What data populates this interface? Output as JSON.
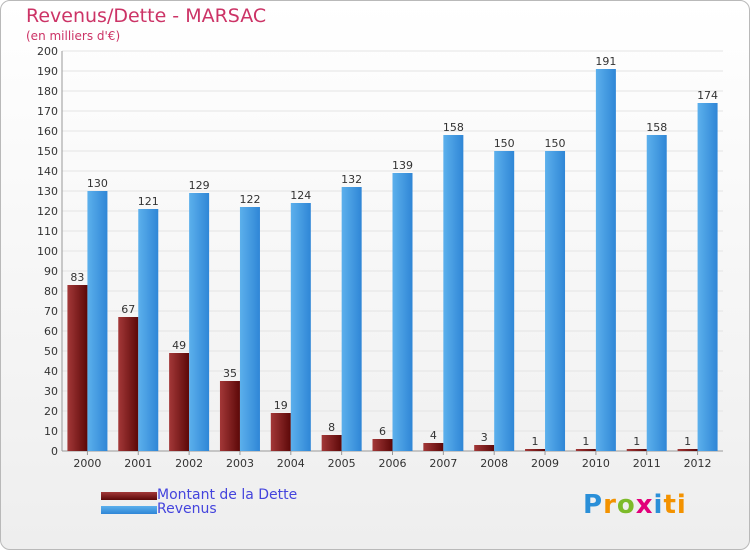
{
  "header": {
    "title": "Revenus/Dette - MARSAC",
    "subtitle": "(en milliers d'€)"
  },
  "legend": {
    "items": [
      {
        "label": "Montant de la Dette",
        "color": "#6b0a0a"
      },
      {
        "label": "Revenus",
        "color": "#3d9be5"
      }
    ]
  },
  "logo": {
    "letters": [
      "P",
      "r",
      "o",
      "x",
      "i",
      "ti"
    ]
  },
  "colors": {
    "dette_dark": "#5c0808",
    "dette_light": "#a33838",
    "revenus_dark": "#2f86d6",
    "revenus_light": "#5cb0ec",
    "title": "#cc3366"
  },
  "chart_data": {
    "type": "bar",
    "title": "Revenus/Dette - MARSAC",
    "subtitle": "(en milliers d'€)",
    "xlabel": "",
    "ylabel": "",
    "ylim": [
      0,
      200
    ],
    "yticks": [
      0,
      10,
      20,
      30,
      40,
      50,
      60,
      70,
      80,
      90,
      100,
      110,
      120,
      130,
      140,
      150,
      160,
      170,
      180,
      190,
      200
    ],
    "grid": true,
    "legend_position": "bottom-left",
    "categories": [
      "2000",
      "2001",
      "2002",
      "2003",
      "2004",
      "2005",
      "2006",
      "2007",
      "2008",
      "2009",
      "2010",
      "2011",
      "2012"
    ],
    "series": [
      {
        "name": "Montant de la Dette",
        "values": [
          83,
          67,
          49,
          35,
          19,
          8,
          6,
          4,
          3,
          1,
          1,
          1,
          1
        ]
      },
      {
        "name": "Revenus",
        "values": [
          130,
          121,
          129,
          122,
          124,
          132,
          139,
          158,
          150,
          150,
          191,
          158,
          174
        ]
      }
    ]
  }
}
